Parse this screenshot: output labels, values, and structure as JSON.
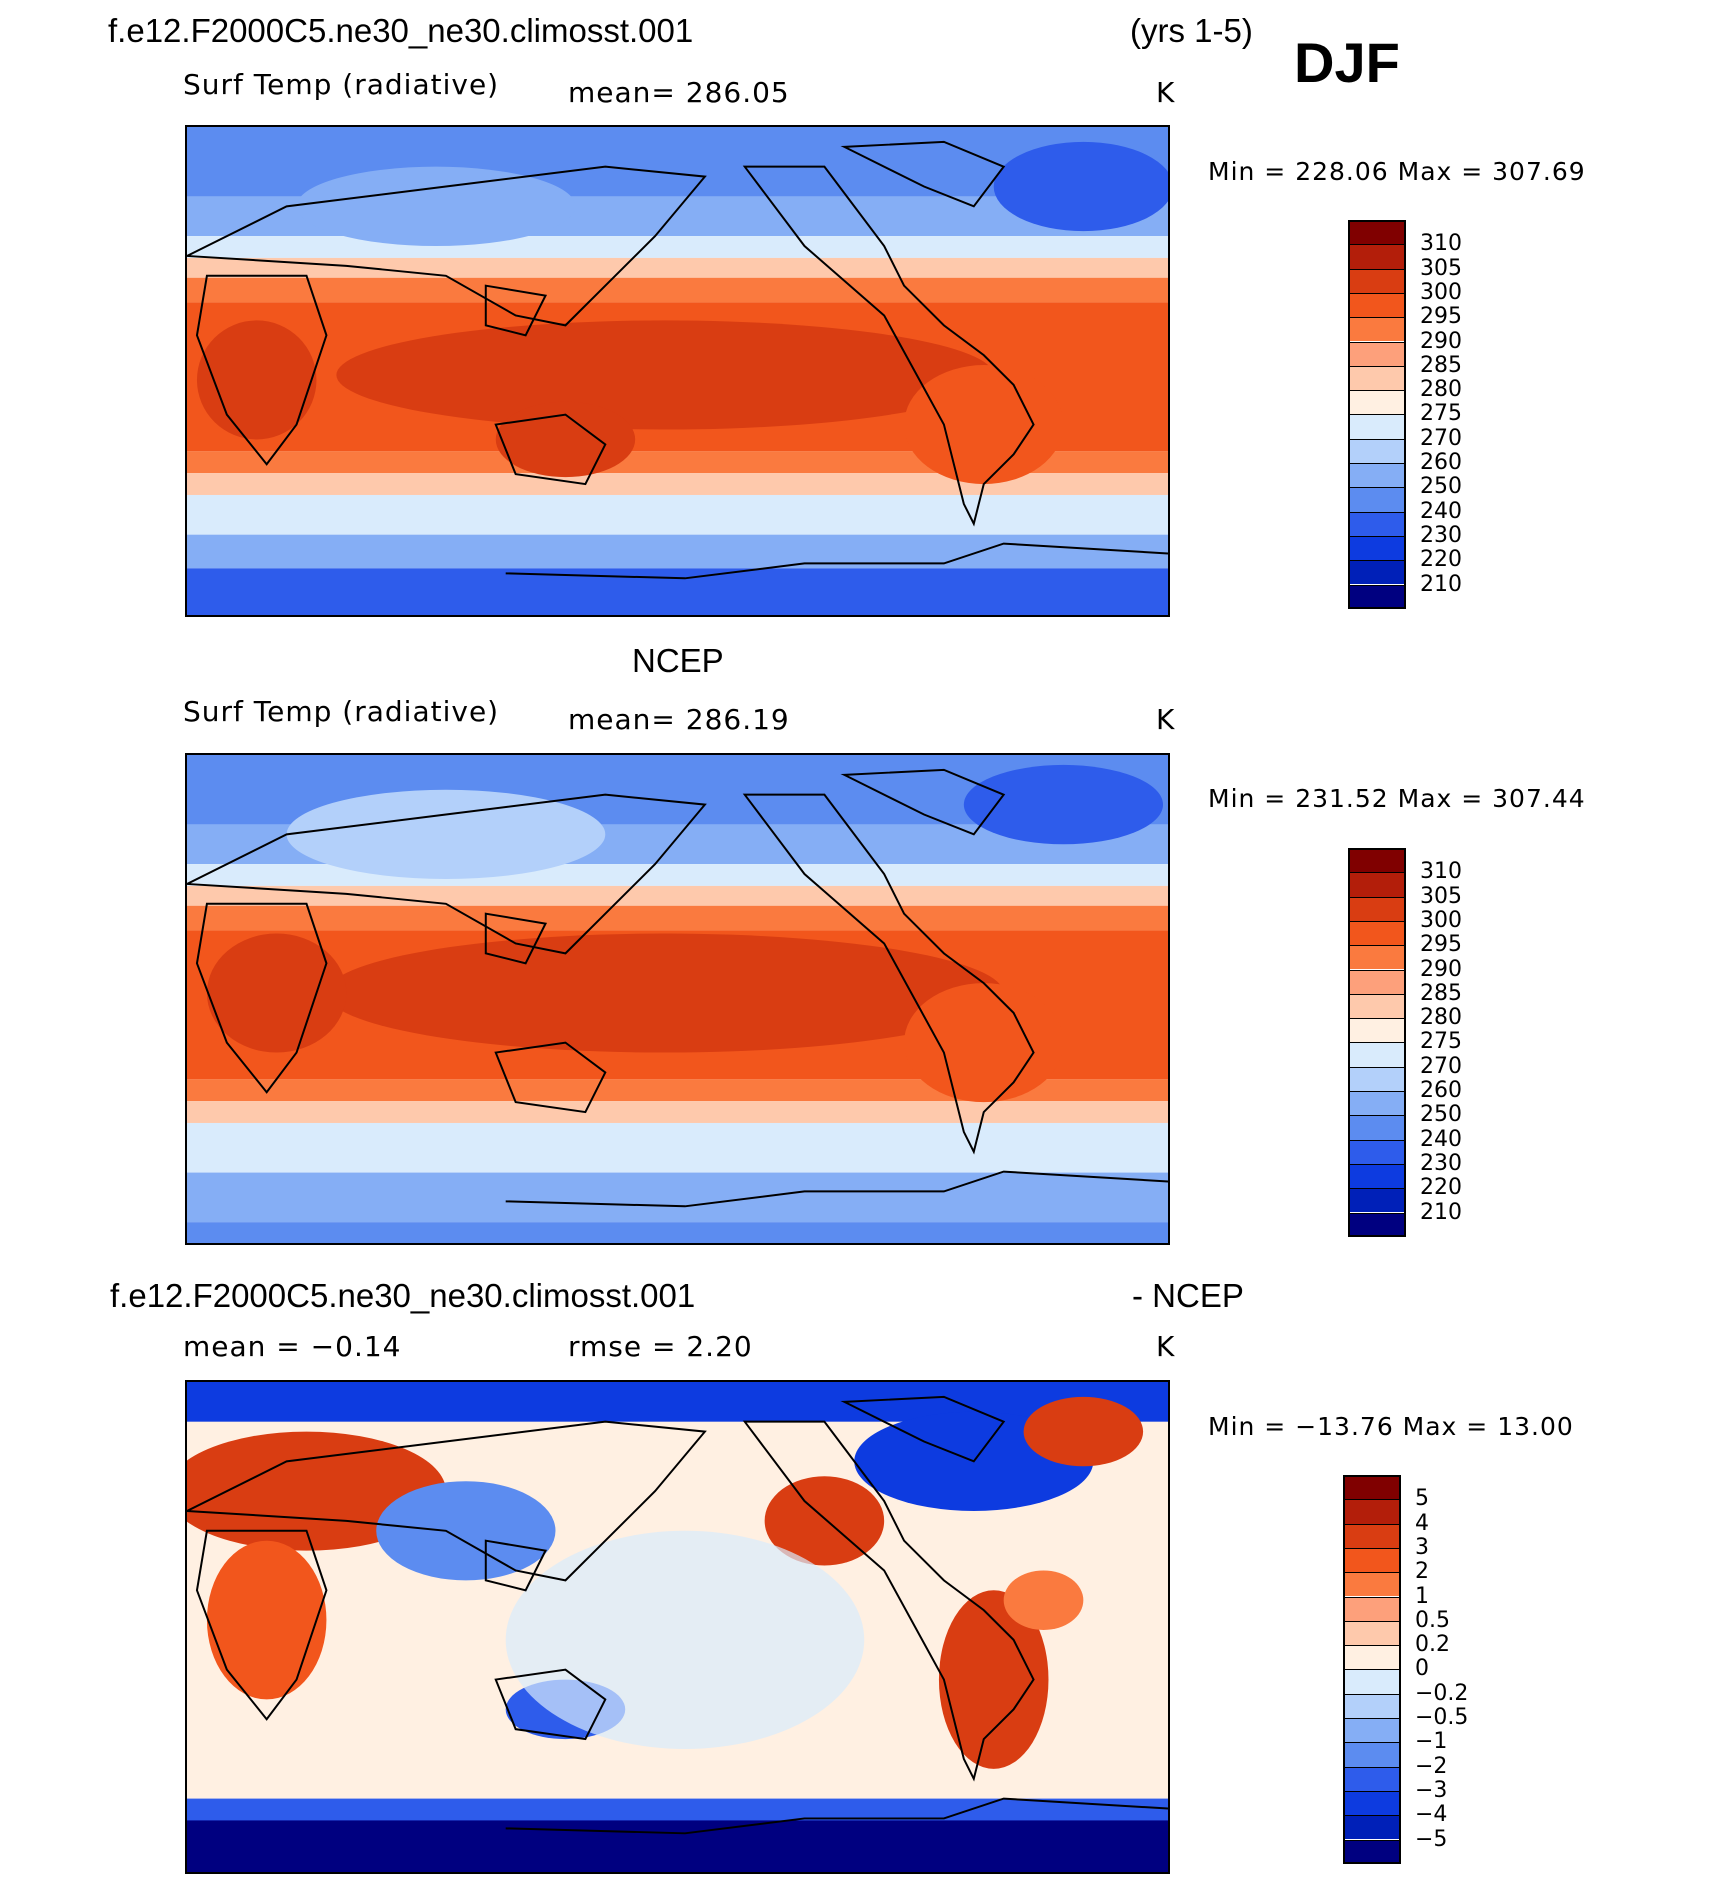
{
  "header": {
    "case_name": "f.e12.F2000C5.ne30_ne30.climosst.001",
    "years": "(yrs 1-5)",
    "season": "DJF"
  },
  "panel1": {
    "variable": "Surf Temp (radiative)",
    "stat": "mean=  286.05",
    "units": "K",
    "minmax": "Min  =  228.06  Max  =  307.69",
    "colorbar_labels": [
      "310",
      "305",
      "300",
      "295",
      "290",
      "285",
      "280",
      "275",
      "270",
      "260",
      "250",
      "240",
      "230",
      "220",
      "210"
    ]
  },
  "panel2": {
    "title": "NCEP",
    "variable": "Surf Temp (radiative)",
    "stat": "mean=  286.19",
    "units": "K",
    "minmax": "Min  =  231.52  Max  =  307.44",
    "colorbar_labels": [
      "310",
      "305",
      "300",
      "295",
      "290",
      "285",
      "280",
      "275",
      "270",
      "260",
      "250",
      "240",
      "230",
      "220",
      "210"
    ]
  },
  "panel3": {
    "title_left": "f.e12.F2000C5.ne30_ne30.climosst.001",
    "title_right": "- NCEP",
    "stat_mean": "mean  =   −0.14",
    "stat_rmse": "rmse  =     2.20",
    "units": "K",
    "minmax": "Min  =  −13.76  Max  =    13.00",
    "colorbar_labels": [
      "5",
      "4",
      "3",
      "2",
      "1",
      "0.5",
      "0.2",
      "0",
      "−0.2",
      "−0.5",
      "−1",
      "−2",
      "−3",
      "−4",
      "−5"
    ]
  },
  "colors": {
    "scale_16": [
      "#800000",
      "#b31e0a",
      "#d93d12",
      "#f2561c",
      "#fa7a3f",
      "#fda07b",
      "#fec9ac",
      "#fff0e2",
      "#d9ebfc",
      "#b3d0fa",
      "#85aef5",
      "#5c8cf0",
      "#2e5ceb",
      "#0d3be0",
      "#0020b8",
      "#000080"
    ]
  }
}
